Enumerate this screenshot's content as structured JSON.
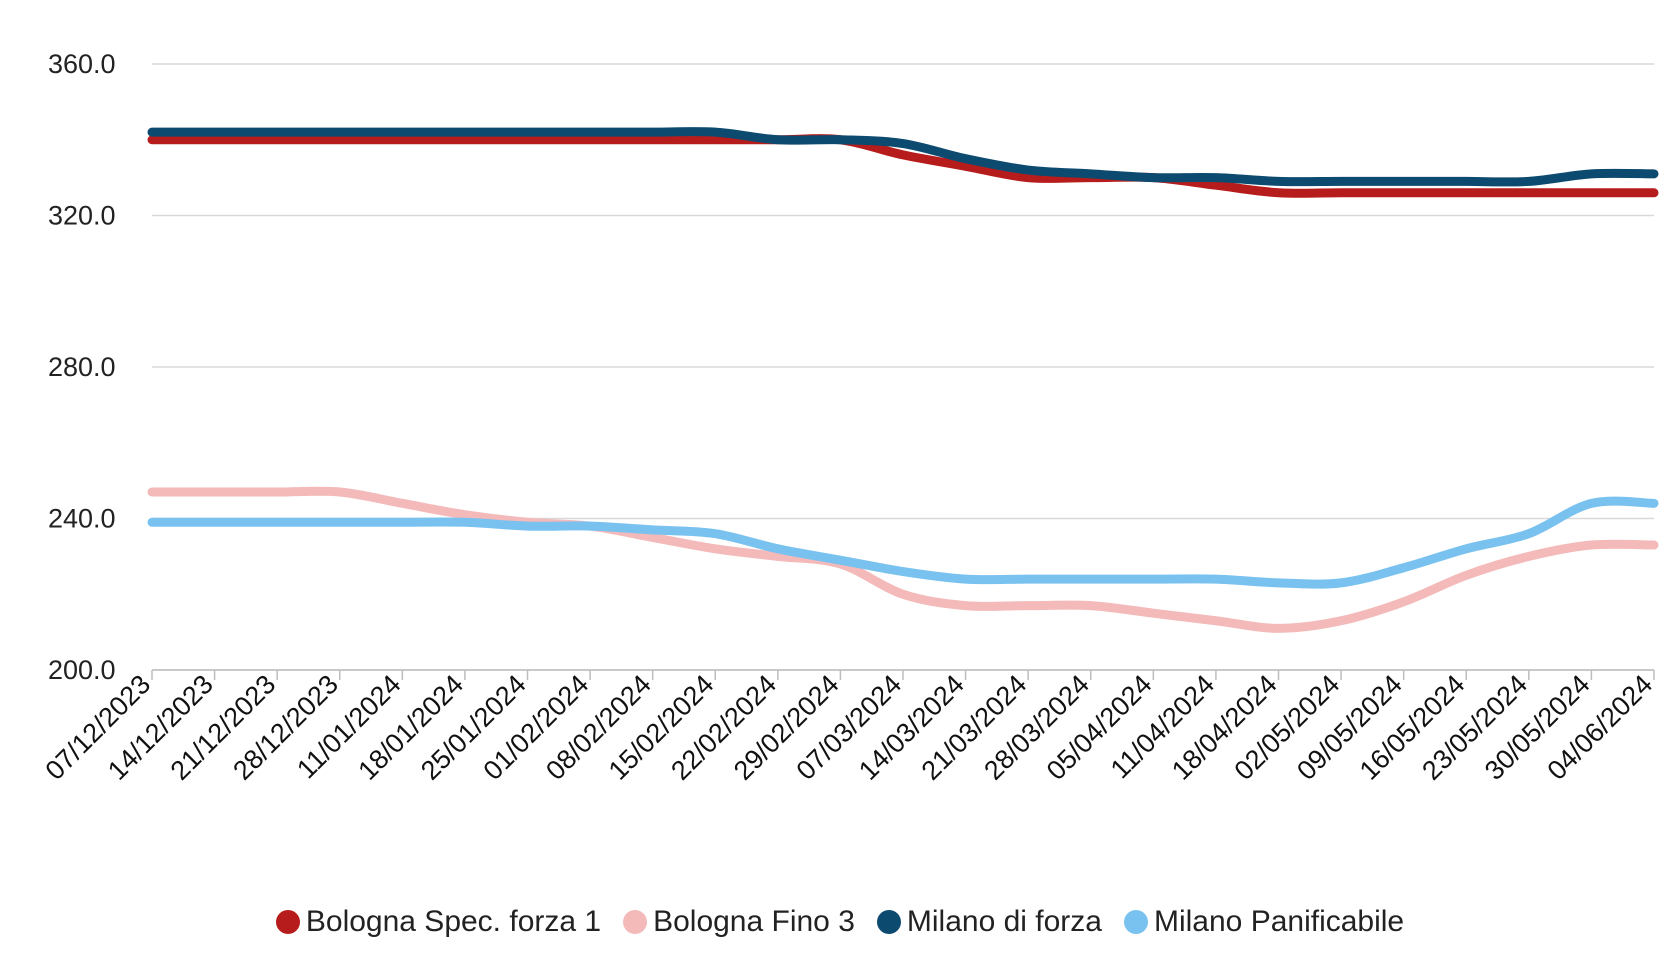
{
  "chart_data": {
    "type": "line",
    "title": "",
    "xlabel": "",
    "ylabel": "",
    "ylim": [
      200,
      360
    ],
    "y_ticks": [
      "200.0",
      "240.0",
      "280.0",
      "320.0",
      "360.0"
    ],
    "grid": true,
    "legend_position": "bottom",
    "x": [
      "07/12/2023",
      "14/12/2023",
      "21/12/2023",
      "28/12/2023",
      "11/01/2024",
      "18/01/2024",
      "25/01/2024",
      "01/02/2024",
      "08/02/2024",
      "15/02/2024",
      "22/02/2024",
      "29/02/2024",
      "07/03/2024",
      "14/03/2024",
      "21/03/2024",
      "28/03/2024",
      "05/04/2024",
      "11/04/2024",
      "18/04/2024",
      "02/05/2024",
      "09/05/2024",
      "16/05/2024",
      "23/05/2024",
      "30/05/2024",
      "04/06/2024"
    ],
    "series": [
      {
        "name": "Bologna Spec. forza 1",
        "color": "#b71c1c",
        "values": [
          340,
          340,
          340,
          340,
          340,
          340,
          340,
          340,
          340,
          340,
          340,
          340,
          336,
          333,
          330,
          330,
          330,
          328,
          326,
          326,
          326,
          326,
          326,
          326,
          326
        ]
      },
      {
        "name": "Bologna Fino 3",
        "color": "#f4b9b9",
        "values": [
          247,
          247,
          247,
          247,
          244,
          241,
          239,
          238,
          235,
          232,
          230,
          228,
          220,
          217,
          217,
          217,
          215,
          213,
          211,
          213,
          218,
          225,
          230,
          233,
          233
        ]
      },
      {
        "name": "Milano di forza",
        "color": "#0d4a70",
        "values": [
          342,
          342,
          342,
          342,
          342,
          342,
          342,
          342,
          342,
          342,
          340,
          340,
          339,
          335,
          332,
          331,
          330,
          330,
          329,
          329,
          329,
          329,
          329,
          331,
          331
        ]
      },
      {
        "name": "Milano Panificabile",
        "color": "#79c2f0",
        "values": [
          239,
          239,
          239,
          239,
          239,
          239,
          238,
          238,
          237,
          236,
          232,
          229,
          226,
          224,
          224,
          224,
          224,
          224,
          223,
          223,
          227,
          232,
          236,
          244,
          244
        ]
      }
    ]
  }
}
